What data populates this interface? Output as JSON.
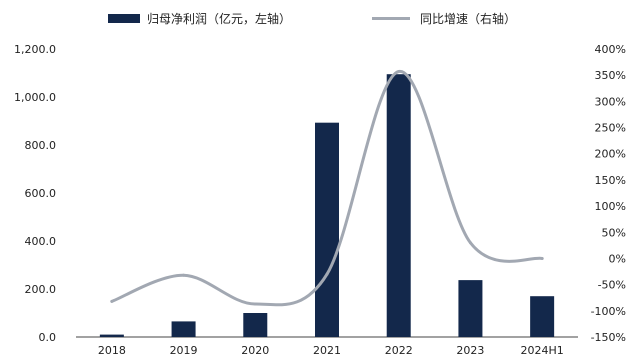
{
  "chart_data": {
    "type": "bar",
    "categories": [
      "2018",
      "2019",
      "2020",
      "2021",
      "2022",
      "2023",
      "2024H1"
    ],
    "series": [
      {
        "name": "归母净利润（亿元，左轴）",
        "type": "bar",
        "axis": "left",
        "color": "#13284b",
        "values": [
          10,
          65,
          100,
          893,
          1095,
          237,
          170
        ]
      },
      {
        "name": "同比增速（右轴）",
        "type": "line",
        "axis": "right",
        "color": "#a2a8b2",
        "values": [
          -82,
          -32,
          -87,
          -30,
          357,
          30,
          0
        ]
      }
    ],
    "y_left": {
      "ylim": [
        0,
        1200
      ],
      "ticks": [
        0,
        200,
        400,
        600,
        800,
        1000,
        1200
      ],
      "tick_labels": [
        "0.0",
        "200.0",
        "400.0",
        "600.0",
        "800.0",
        "1,000.0",
        "1,200.0"
      ]
    },
    "y_right": {
      "ylim": [
        -150,
        400
      ],
      "ticks": [
        -150,
        -100,
        -50,
        0,
        50,
        100,
        150,
        200,
        250,
        300,
        350,
        400
      ],
      "tick_labels": [
        "-150%",
        "-100%",
        "-50%",
        "0%",
        "50%",
        "100%",
        "150%",
        "200%",
        "250%",
        "300%",
        "350%",
        "400%"
      ]
    },
    "legend_position": "top",
    "grid": false
  }
}
